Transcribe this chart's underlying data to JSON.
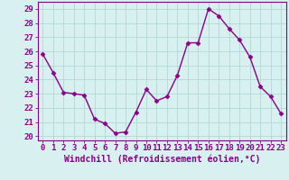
{
  "x": [
    0,
    1,
    2,
    3,
    4,
    5,
    6,
    7,
    8,
    9,
    10,
    11,
    12,
    13,
    14,
    15,
    16,
    17,
    18,
    19,
    20,
    21,
    22,
    23
  ],
  "y": [
    25.8,
    24.5,
    23.1,
    23.0,
    22.9,
    21.2,
    20.9,
    20.2,
    20.3,
    21.7,
    23.3,
    22.5,
    22.8,
    24.3,
    26.6,
    26.6,
    29.0,
    28.5,
    27.6,
    26.8,
    25.6,
    23.5,
    22.8,
    21.6
  ],
  "line_color": "#880088",
  "marker": "D",
  "markersize": 2.5,
  "linewidth": 1.0,
  "bg_color": "#d8f0f0",
  "grid_color": "#b0d8d8",
  "xlabel": "Windchill (Refroidissement éolien,°C)",
  "xlabel_fontsize": 7,
  "ylabel_ticks": [
    20,
    21,
    22,
    23,
    24,
    25,
    26,
    27,
    28,
    29
  ],
  "xlim": [
    -0.5,
    23.5
  ],
  "ylim": [
    19.7,
    29.5
  ],
  "tick_fontsize": 6.5,
  "tick_color": "#880088",
  "spine_color": "#880088",
  "xlabel_color": "#880088"
}
